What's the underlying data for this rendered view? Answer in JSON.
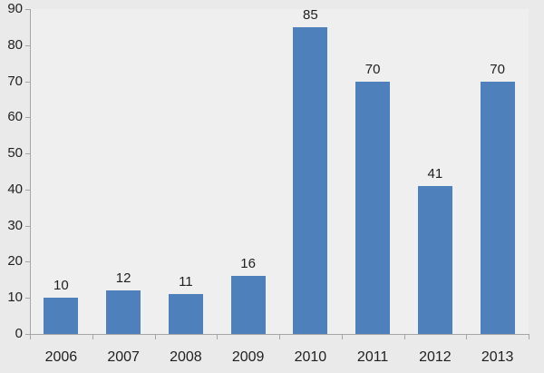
{
  "chart_data": {
    "type": "bar",
    "title": "",
    "xlabel": "",
    "ylabel": "",
    "categories": [
      "2006",
      "2007",
      "2008",
      "2009",
      "2010",
      "2011",
      "2012",
      "2013"
    ],
    "values": [
      10,
      12,
      11,
      16,
      85,
      70,
      41,
      70
    ],
    "data_labels": [
      "10",
      "12",
      "11",
      "16",
      "85",
      "70",
      "41",
      "70"
    ],
    "ylim": [
      0,
      90
    ],
    "ytick_step": 10,
    "ytick_labels": [
      "0",
      "10",
      "20",
      "30",
      "40",
      "50",
      "60",
      "70",
      "80",
      "90"
    ],
    "grid": false,
    "legend": false
  },
  "colors": {
    "background": "#EBEAEA",
    "plot_background": "#F0EFEF",
    "bar": "#4E80BC",
    "axis": "#A6A6A6",
    "text": "#1F1F1F"
  }
}
